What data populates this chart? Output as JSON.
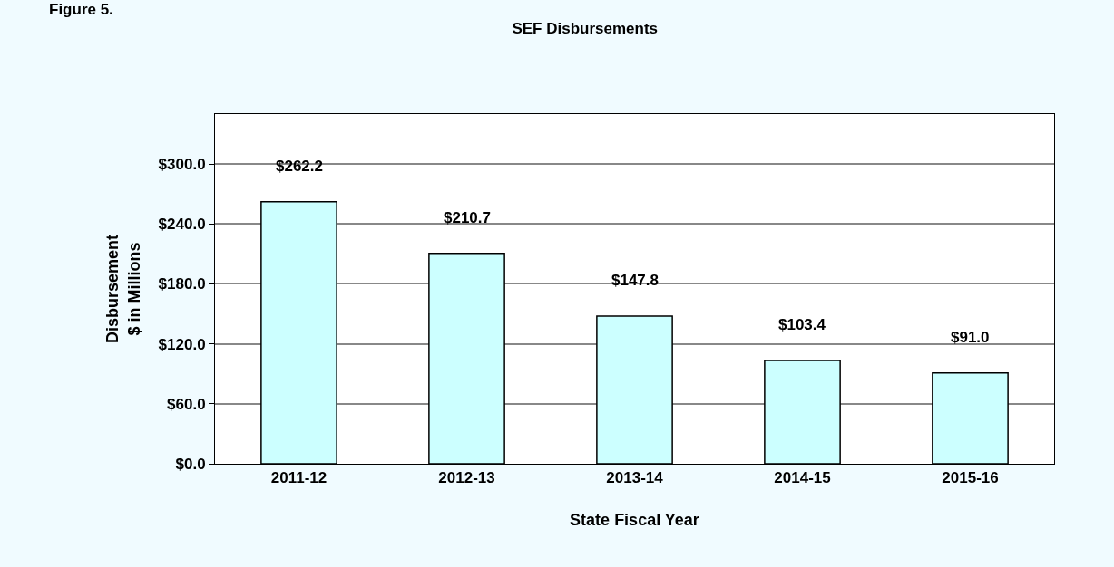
{
  "chart_data": {
    "type": "bar",
    "title": "SEF Disbursements",
    "xlabel": "State Fiscal Year",
    "ylabel": "Disbursement\n$ in Millions",
    "annotations": [
      "Figure 5."
    ],
    "categories": [
      "2011-12",
      "2012-13",
      "2013-14",
      "2014-15",
      "2015-16"
    ],
    "values": [
      262.2,
      210.7,
      147.8,
      103.4,
      91.0
    ],
    "value_labels": [
      "$262.2",
      "$210.7",
      "$147.8",
      "$103.4",
      "$91.0"
    ],
    "color": "#ccffff",
    "ylim": [
      0,
      350
    ],
    "yticks": [
      {
        "value": 0,
        "label": "$0.0"
      },
      {
        "value": 60,
        "label": "$60.0"
      },
      {
        "value": 120,
        "label": "$120.0"
      },
      {
        "value": 180,
        "label": "$180.0"
      },
      {
        "value": 240,
        "label": "$240.0"
      },
      {
        "value": 300,
        "label": "$300.0"
      }
    ],
    "grid": "y",
    "legend": false
  }
}
